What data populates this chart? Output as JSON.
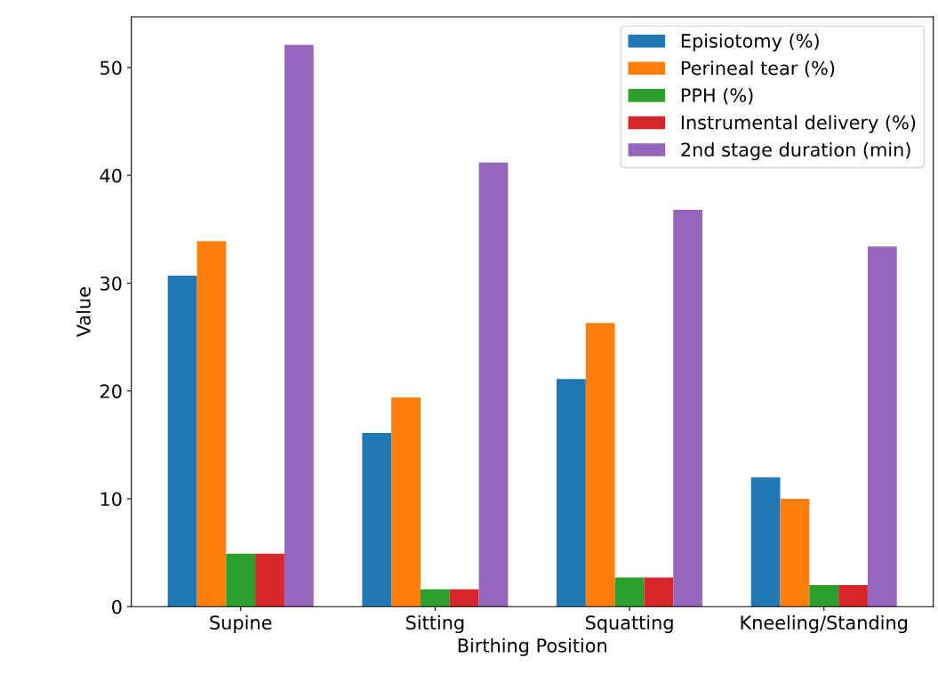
{
  "chart_data": {
    "type": "bar",
    "xlabel": "Birthing Position",
    "ylabel": "Value",
    "categories": [
      "Supine",
      "Sitting",
      "Squatting",
      "Kneeling/Standing"
    ],
    "series": [
      {
        "name": "Episiotomy (%)",
        "color": "#1f77b4",
        "values": [
          30.7,
          16.1,
          21.1,
          12.0
        ]
      },
      {
        "name": "Perineal tear (%)",
        "color": "#ff7f0e",
        "values": [
          33.9,
          19.4,
          26.3,
          10.0
        ]
      },
      {
        "name": "PPH (%)",
        "color": "#2ca02c",
        "values": [
          4.9,
          1.6,
          2.7,
          2.0
        ]
      },
      {
        "name": "Instrumental delivery (%)",
        "color": "#d62728",
        "values": [
          4.9,
          1.6,
          2.7,
          2.0
        ]
      },
      {
        "name": "2nd stage duration (min)",
        "color": "#9467bd",
        "values": [
          52.1,
          41.2,
          36.8,
          33.4
        ]
      }
    ],
    "ylim": [
      0,
      54.7
    ],
    "yticks": [
      0,
      10,
      20,
      30,
      40,
      50
    ],
    "grid": false,
    "legend": "top right"
  }
}
